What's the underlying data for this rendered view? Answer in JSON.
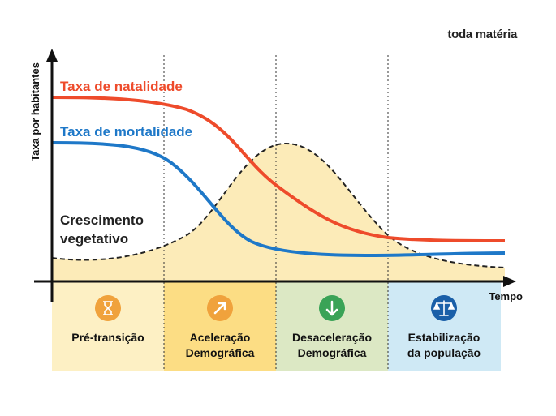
{
  "brand": "toda matéria",
  "axes": {
    "y_label": "Taxa por habitantes",
    "x_label": "Tempo"
  },
  "series": {
    "natalidade": {
      "label": "Taxa de natalidade",
      "color": "#EE4B2B"
    },
    "mortalidade": {
      "label": "Taxa de mortalidade",
      "color": "#1E78C8"
    },
    "crescimento": {
      "label_line1": "Crescimento",
      "label_line2": "vegetativo",
      "color": "#222222",
      "fill": "#FCEBB8"
    }
  },
  "stages": [
    {
      "line1": "Pré-transição",
      "line2": "",
      "icon": "hourglass-icon",
      "icon_color": "#F0A23C",
      "bg": "#FDF0C4"
    },
    {
      "line1": "Aceleração",
      "line2": "Demográfica",
      "icon": "arrow-up-right-icon",
      "icon_color": "#F0A23C",
      "bg": "#FCDD84"
    },
    {
      "line1": "Desaceleração",
      "line2": "Demográfica",
      "icon": "arrow-down-icon",
      "icon_color": "#3AA357",
      "bg": "#DCE8C4"
    },
    {
      "line1": "Estabilização",
      "line2": "da população",
      "icon": "scale-icon",
      "icon_color": "#1A5FA8",
      "bg": "#CFE9F5"
    }
  ]
}
